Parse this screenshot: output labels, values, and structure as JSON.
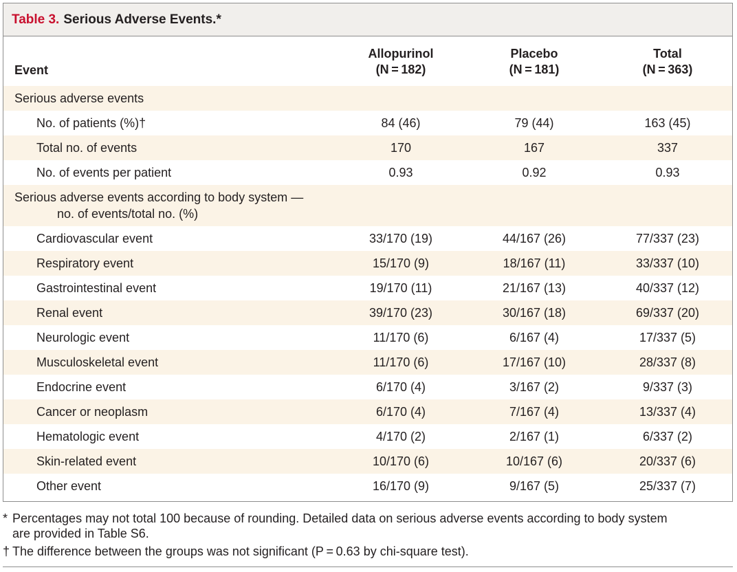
{
  "table": {
    "label": "Table 3.",
    "title": "Serious Adverse Events.*",
    "columns": {
      "event": "Event",
      "allopurinol": "Allopurinol",
      "allopurinol_n": "(N = 182)",
      "placebo": "Placebo",
      "placebo_n": "(N = 181)",
      "total": "Total",
      "total_n": "(N = 363)"
    },
    "section1": {
      "label": "Serious adverse events",
      "rows": [
        {
          "label": "No. of patients (%)†",
          "allopurinol": "84 (46)",
          "placebo": "79 (44)",
          "total": "163 (45)"
        },
        {
          "label": "Total no. of events",
          "allopurinol": "170",
          "placebo": "167",
          "total": "337"
        },
        {
          "label": "No. of events per patient",
          "allopurinol": "0.93",
          "placebo": "0.92",
          "total": "0.93"
        }
      ]
    },
    "section2": {
      "label_line1": "Serious adverse events according to body system —",
      "label_line2": "no. of events/total no. (%)",
      "rows": [
        {
          "label": "Cardiovascular event",
          "allopurinol": "33/170 (19)",
          "placebo": "44/167 (26)",
          "total": "77/337 (23)"
        },
        {
          "label": "Respiratory event",
          "allopurinol": "15/170 (9)",
          "placebo": "18/167 (11)",
          "total": "33/337 (10)"
        },
        {
          "label": "Gastrointestinal event",
          "allopurinol": "19/170 (11)",
          "placebo": "21/167 (13)",
          "total": "40/337 (12)"
        },
        {
          "label": "Renal event",
          "allopurinol": "39/170 (23)",
          "placebo": "30/167 (18)",
          "total": "69/337 (20)"
        },
        {
          "label": "Neurologic event",
          "allopurinol": "11/170 (6)",
          "placebo": "6/167 (4)",
          "total": "17/337 (5)"
        },
        {
          "label": "Musculoskeletal event",
          "allopurinol": "11/170 (6)",
          "placebo": "17/167 (10)",
          "total": "28/337 (8)"
        },
        {
          "label": "Endocrine event",
          "allopurinol": "6/170 (4)",
          "placebo": "3/167 (2)",
          "total": "9/337 (3)"
        },
        {
          "label": "Cancer or neoplasm",
          "allopurinol": "6/170 (4)",
          "placebo": "7/167 (4)",
          "total": "13/337 (4)"
        },
        {
          "label": "Hematologic event",
          "allopurinol": "4/170 (2)",
          "placebo": "2/167 (1)",
          "total": "6/337 (2)"
        },
        {
          "label": "Skin-related event",
          "allopurinol": "10/170 (6)",
          "placebo": "10/167 (6)",
          "total": "20/337 (6)"
        },
        {
          "label": "Other event",
          "allopurinol": "16/170 (9)",
          "placebo": "9/167 (5)",
          "total": "25/337 (7)"
        }
      ]
    }
  },
  "footnotes": {
    "star_symbol": "*",
    "star_line1": "Percentages may not total 100 because of rounding. Detailed data on serious adverse events according to body system",
    "star_line2": "are provided in Table S6.",
    "dagger_symbol": "†",
    "dagger_text": "The difference between the groups was not significant (P = 0.63 by chi-square test)."
  }
}
